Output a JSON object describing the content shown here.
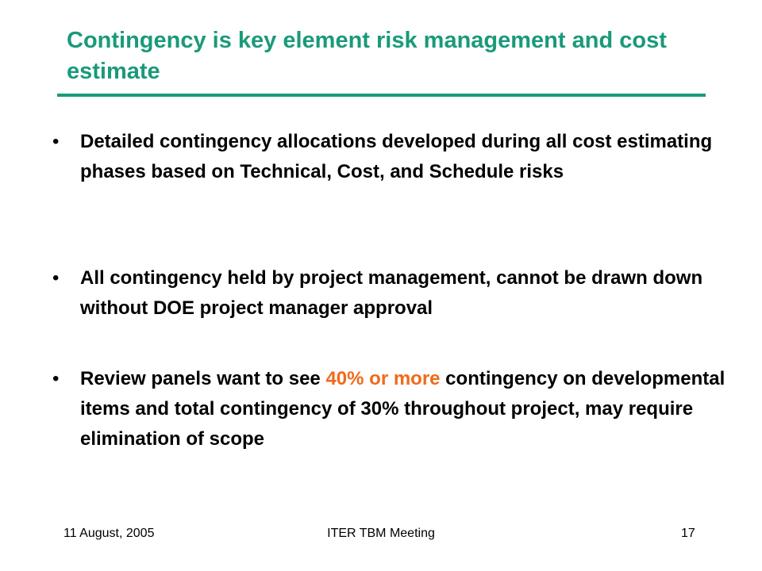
{
  "slide": {
    "title": "Contingency is key element risk management and cost estimate",
    "bullet_marker": "•",
    "bullets": [
      {
        "text": "Detailed contingency allocations developed during all cost estimating phases based on Technical, Cost, and Schedule risks"
      },
      {
        "text": "All contingency held by project management, cannot be drawn down without DOE project manager approval"
      },
      {
        "text_before": "Review panels want to see ",
        "highlight": "40% or more",
        "text_after": " contingency on developmental items and total contingency of 30% throughout project, may require elimination of scope"
      }
    ],
    "accent_color": "#f06a1a",
    "title_color": "#1a9a7a"
  },
  "footer": {
    "date": "11 August, 2005",
    "meeting": "ITER TBM Meeting",
    "page_number": "17"
  }
}
